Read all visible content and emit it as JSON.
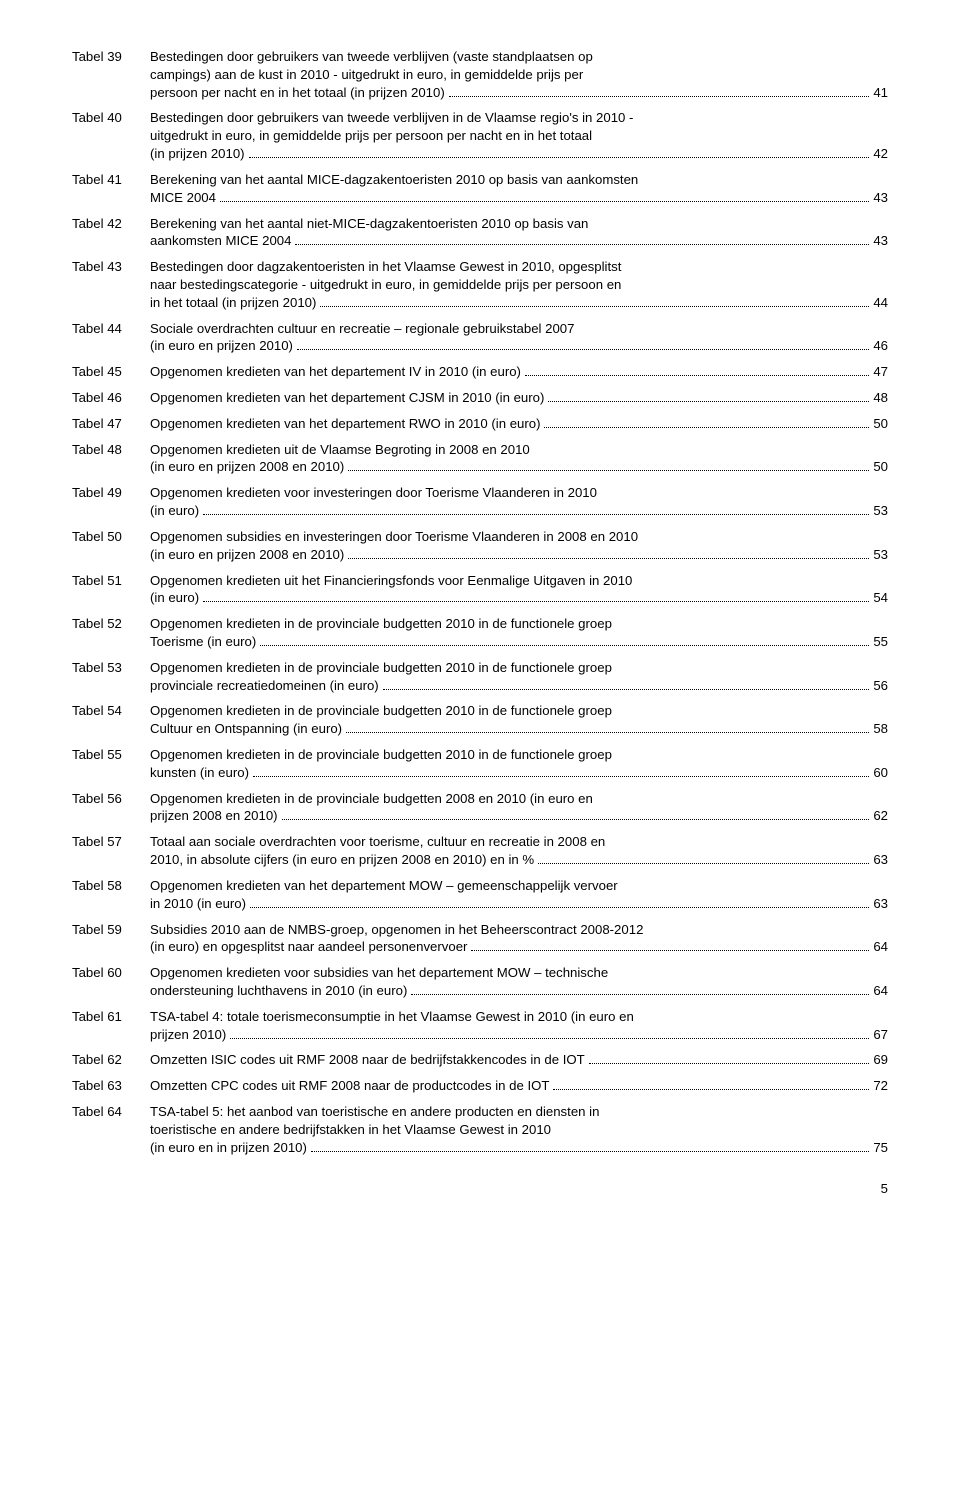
{
  "page_number": "5",
  "entries": [
    {
      "label": "Tabel 39",
      "lines": [
        "Bestedingen door gebruikers van tweede verblijven (vaste standplaatsen op",
        "campings) aan de kust in 2010 - uitgedrukt in euro, in gemiddelde prijs per",
        "persoon per nacht en in het totaal (in prijzen 2010)"
      ],
      "page": "41"
    },
    {
      "label": "Tabel 40",
      "lines": [
        "Bestedingen door gebruikers van tweede verblijven in de Vlaamse regio's in 2010 -",
        "uitgedrukt in euro, in gemiddelde prijs per persoon per nacht en in het totaal",
        "(in prijzen 2010)"
      ],
      "page": "42"
    },
    {
      "label": "Tabel 41",
      "lines": [
        "Berekening van het aantal MICE-dagzakentoeristen 2010 op basis van aankomsten",
        "MICE 2004"
      ],
      "page": "43"
    },
    {
      "label": "Tabel 42",
      "lines": [
        "Berekening van het aantal niet-MICE-dagzakentoeristen 2010 op basis van",
        "aankomsten MICE 2004"
      ],
      "page": "43"
    },
    {
      "label": "Tabel 43",
      "lines": [
        "Bestedingen door dagzakentoeristen in het Vlaamse Gewest in 2010, opgesplitst",
        "naar bestedingscategorie - uitgedrukt in euro, in gemiddelde prijs per persoon en",
        "in het totaal (in prijzen 2010)"
      ],
      "page": "44"
    },
    {
      "label": "Tabel 44",
      "lines": [
        "Sociale overdrachten cultuur en recreatie – regionale gebruikstabel 2007",
        "(in euro en prijzen 2010)"
      ],
      "page": "46"
    },
    {
      "label": "Tabel 45",
      "lines": [
        "Opgenomen kredieten van het departement IV in 2010 (in euro)"
      ],
      "page": "47"
    },
    {
      "label": "Tabel 46",
      "lines": [
        "Opgenomen kredieten van het departement CJSM in 2010 (in euro)"
      ],
      "page": "48"
    },
    {
      "label": "Tabel 47",
      "lines": [
        "Opgenomen kredieten van het departement RWO in 2010 (in euro)"
      ],
      "page": "50"
    },
    {
      "label": "Tabel 48",
      "lines": [
        "Opgenomen kredieten uit de Vlaamse Begroting in 2008 en 2010",
        "(in euro en prijzen 2008 en 2010)"
      ],
      "page": "50"
    },
    {
      "label": "Tabel 49",
      "lines": [
        "Opgenomen kredieten voor investeringen door Toerisme Vlaanderen in 2010",
        "(in euro)"
      ],
      "page": "53"
    },
    {
      "label": "Tabel 50",
      "lines": [
        "Opgenomen subsidies en investeringen door Toerisme Vlaanderen in 2008 en 2010",
        "(in euro en prijzen 2008 en 2010)"
      ],
      "page": "53"
    },
    {
      "label": "Tabel 51",
      "lines": [
        "Opgenomen kredieten uit het Financieringsfonds voor Eenmalige Uitgaven in 2010",
        "(in euro)"
      ],
      "page": "54"
    },
    {
      "label": "Tabel 52",
      "lines": [
        "Opgenomen kredieten in de provinciale budgetten 2010 in de functionele groep",
        "Toerisme (in euro)"
      ],
      "page": "55"
    },
    {
      "label": "Tabel 53",
      "lines": [
        "Opgenomen kredieten in de provinciale budgetten 2010 in de functionele groep",
        "provinciale recreatiedomeinen (in euro)"
      ],
      "page": "56"
    },
    {
      "label": "Tabel 54",
      "lines": [
        "Opgenomen kredieten in de provinciale budgetten 2010 in de functionele groep",
        "Cultuur en Ontspanning (in euro)"
      ],
      "page": "58"
    },
    {
      "label": "Tabel 55",
      "lines": [
        "Opgenomen kredieten in de provinciale budgetten 2010 in de functionele groep",
        "kunsten (in euro)"
      ],
      "page": "60"
    },
    {
      "label": "Tabel 56",
      "lines": [
        "Opgenomen kredieten in de provinciale budgetten 2008 en 2010 (in euro en",
        "prijzen 2008 en 2010)"
      ],
      "page": "62"
    },
    {
      "label": "Tabel 57",
      "lines": [
        "Totaal aan sociale overdrachten voor toerisme, cultuur en recreatie in 2008 en",
        "2010, in absolute cijfers (in euro en prijzen 2008 en 2010) en in %"
      ],
      "page": "63"
    },
    {
      "label": "Tabel 58",
      "lines": [
        "Opgenomen kredieten van het departement MOW – gemeenschappelijk vervoer",
        "in 2010 (in euro)"
      ],
      "page": "63"
    },
    {
      "label": "Tabel 59",
      "lines": [
        "Subsidies 2010 aan de NMBS-groep, opgenomen in het Beheerscontract 2008-2012",
        "(in euro) en opgesplitst naar aandeel personenvervoer"
      ],
      "page": "64"
    },
    {
      "label": "Tabel 60",
      "lines": [
        "Opgenomen kredieten voor subsidies van het departement MOW – technische",
        "ondersteuning luchthavens in 2010 (in euro)"
      ],
      "page": "64"
    },
    {
      "label": "Tabel  61",
      "lines": [
        "TSA-tabel 4: totale toerismeconsumptie in het Vlaamse Gewest in 2010 (in euro en",
        "prijzen 2010)"
      ],
      "page": "67"
    },
    {
      "label": "Tabel 62",
      "lines": [
        "Omzetten ISIC codes uit RMF 2008 naar de bedrijfstakkencodes in de IOT"
      ],
      "page": "69"
    },
    {
      "label": "Tabel 63",
      "lines": [
        "Omzetten CPC codes uit RMF 2008 naar de productcodes in de IOT"
      ],
      "page": "72"
    },
    {
      "label": "Tabel 64",
      "lines": [
        "TSA-tabel 5: het aanbod van toeristische en andere producten en diensten in",
        "toeristische en andere bedrijfstakken in het Vlaamse Gewest in 2010",
        "(in euro en in prijzen 2010)"
      ],
      "page": "75"
    }
  ]
}
